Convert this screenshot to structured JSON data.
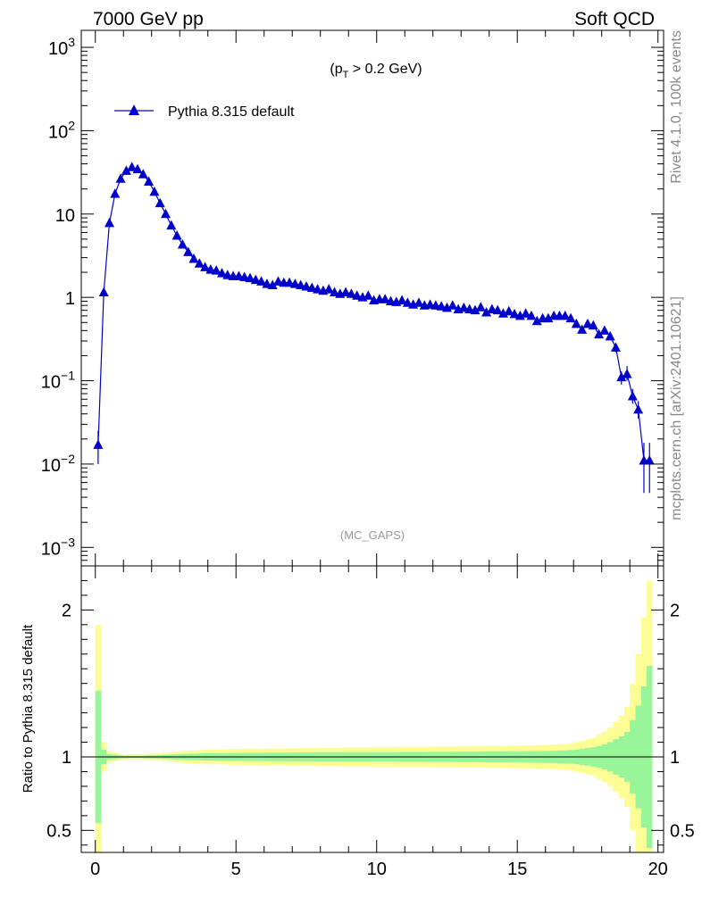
{
  "header": {
    "left": "7000 GeV pp",
    "right": "Soft QCD"
  },
  "side_labels": {
    "rivet": "Rivet 4.1.0,  100k events",
    "mcplots": "mcplots.cern.ch [arXiv:2401.10621]"
  },
  "colors": {
    "series": "#0000cc",
    "band_inner": "#99f599",
    "band_outer": "#fdfd96",
    "ref_line": "#000000",
    "watermark": "#999999"
  },
  "chart_data": [
    {
      "type": "line",
      "panel": "main",
      "title": "(p_T > 0.2 GeV)",
      "title_parts": {
        "prefix": "(p",
        "sub": "T",
        "suffix": " > 0.2 GeV)"
      },
      "watermark": "(MC_GAPS)",
      "xlabel": "",
      "ylabel": "",
      "xlim": [
        -0.5,
        20.2
      ],
      "ylim": [
        0.0006,
        1600
      ],
      "yscale": "log",
      "grid": false,
      "legend": {
        "position": "top-left",
        "entries": [
          "Pythia 8.315 default"
        ]
      },
      "x_ticks": [
        0,
        5,
        10,
        15,
        20
      ],
      "y_ticks": [
        {
          "base": "10",
          "exp": "3"
        },
        {
          "base": "10",
          "exp": "2"
        },
        {
          "base": "10",
          "exp": ""
        },
        {
          "base": "1",
          "exp": ""
        },
        {
          "base": "10",
          "exp": "−1"
        },
        {
          "base": "10",
          "exp": "−2"
        },
        {
          "base": "10",
          "exp": "−3"
        }
      ],
      "y_tick_values": [
        1000,
        100,
        10,
        1,
        0.1,
        0.01,
        0.001
      ],
      "series": [
        {
          "name": "Pythia 8.315 default",
          "marker": "triangle",
          "x": [
            0.1,
            0.3,
            0.5,
            0.7,
            0.9,
            1.1,
            1.3,
            1.5,
            1.7,
            1.9,
            2.1,
            2.3,
            2.5,
            2.7,
            2.9,
            3.1,
            3.3,
            3.5,
            3.7,
            3.9,
            4.1,
            4.3,
            4.5,
            4.7,
            4.9,
            5.1,
            5.3,
            5.5,
            5.7,
            5.9,
            6.1,
            6.3,
            6.5,
            6.7,
            6.9,
            7.1,
            7.3,
            7.5,
            7.7,
            7.9,
            8.1,
            8.3,
            8.5,
            8.7,
            8.9,
            9.1,
            9.3,
            9.5,
            9.7,
            9.9,
            10.1,
            10.3,
            10.5,
            10.7,
            10.9,
            11.1,
            11.3,
            11.5,
            11.7,
            11.9,
            12.1,
            12.3,
            12.5,
            12.7,
            12.9,
            13.1,
            13.3,
            13.5,
            13.7,
            13.9,
            14.1,
            14.3,
            14.5,
            14.7,
            14.9,
            15.1,
            15.3,
            15.5,
            15.7,
            15.9,
            16.1,
            16.3,
            16.5,
            16.7,
            16.9,
            17.1,
            17.3,
            17.5,
            17.7,
            17.9,
            18.1,
            18.3,
            18.5,
            18.7,
            18.9,
            19.1,
            19.3,
            19.5,
            19.7
          ],
          "y": [
            0.017,
            1.15,
            7.8,
            17.5,
            26.5,
            33.0,
            36.5,
            34.5,
            30.0,
            24.5,
            18.5,
            13.5,
            10.0,
            7.3,
            5.5,
            4.3,
            3.5,
            2.9,
            2.55,
            2.3,
            2.15,
            2.1,
            1.95,
            1.85,
            1.8,
            1.8,
            1.75,
            1.7,
            1.62,
            1.55,
            1.45,
            1.4,
            1.55,
            1.5,
            1.5,
            1.45,
            1.4,
            1.35,
            1.3,
            1.25,
            1.2,
            1.25,
            1.15,
            1.1,
            1.15,
            1.1,
            1.05,
            1.0,
            1.05,
            0.92,
            0.95,
            0.95,
            0.9,
            0.88,
            0.92,
            0.86,
            0.82,
            0.86,
            0.8,
            0.82,
            0.8,
            0.78,
            0.75,
            0.8,
            0.72,
            0.75,
            0.72,
            0.7,
            0.76,
            0.66,
            0.72,
            0.7,
            0.64,
            0.68,
            0.63,
            0.6,
            0.64,
            0.6,
            0.52,
            0.56,
            0.56,
            0.6,
            0.6,
            0.6,
            0.56,
            0.48,
            0.41,
            0.48,
            0.46,
            0.36,
            0.4,
            0.34,
            0.25,
            0.11,
            0.12,
            0.065,
            0.045,
            0.011,
            0.011
          ],
          "err_low": [
            0.007,
            0.08,
            0.2,
            0.3,
            0.4,
            0.4,
            0.4,
            0.4,
            0.35,
            0.3,
            0.25,
            0.2,
            0.15,
            0.1,
            0.08,
            0.06,
            0.05,
            0.05,
            0.04,
            0.04,
            0.04,
            0.04,
            0.03,
            0.03,
            0.03,
            0.03,
            0.03,
            0.03,
            0.03,
            0.03,
            0.03,
            0.03,
            0.03,
            0.03,
            0.03,
            0.03,
            0.03,
            0.03,
            0.03,
            0.03,
            0.03,
            0.03,
            0.03,
            0.03,
            0.03,
            0.03,
            0.03,
            0.03,
            0.03,
            0.03,
            0.03,
            0.03,
            0.03,
            0.03,
            0.03,
            0.03,
            0.03,
            0.03,
            0.03,
            0.03,
            0.03,
            0.03,
            0.03,
            0.03,
            0.03,
            0.03,
            0.03,
            0.03,
            0.03,
            0.03,
            0.03,
            0.03,
            0.03,
            0.03,
            0.03,
            0.03,
            0.03,
            0.03,
            0.03,
            0.03,
            0.03,
            0.03,
            0.03,
            0.03,
            0.03,
            0.03,
            0.03,
            0.03,
            0.03,
            0.03,
            0.03,
            0.03,
            0.03,
            0.02,
            0.02,
            0.012,
            0.01,
            0.0065,
            0.0065
          ],
          "err_high": [
            0.008,
            0.08,
            0.2,
            0.3,
            0.4,
            0.4,
            0.4,
            0.4,
            0.35,
            0.3,
            0.25,
            0.2,
            0.15,
            0.1,
            0.08,
            0.06,
            0.05,
            0.05,
            0.04,
            0.04,
            0.04,
            0.04,
            0.03,
            0.03,
            0.03,
            0.03,
            0.03,
            0.03,
            0.03,
            0.03,
            0.03,
            0.03,
            0.03,
            0.03,
            0.03,
            0.03,
            0.03,
            0.03,
            0.03,
            0.03,
            0.03,
            0.03,
            0.03,
            0.03,
            0.03,
            0.03,
            0.03,
            0.03,
            0.03,
            0.03,
            0.03,
            0.03,
            0.03,
            0.03,
            0.03,
            0.03,
            0.03,
            0.03,
            0.03,
            0.03,
            0.03,
            0.03,
            0.03,
            0.03,
            0.03,
            0.03,
            0.03,
            0.03,
            0.03,
            0.03,
            0.03,
            0.03,
            0.03,
            0.03,
            0.03,
            0.03,
            0.03,
            0.03,
            0.03,
            0.03,
            0.03,
            0.03,
            0.03,
            0.03,
            0.03,
            0.03,
            0.03,
            0.03,
            0.03,
            0.03,
            0.03,
            0.03,
            0.03,
            0.02,
            0.03,
            0.015,
            0.012,
            0.007,
            0.007
          ]
        }
      ]
    },
    {
      "type": "area",
      "panel": "ratio",
      "title": "",
      "xlabel": "",
      "ylabel": "Ratio to Pythia 8.315 default",
      "xlim": [
        -0.5,
        20.2
      ],
      "ylim": [
        0.35,
        2.3
      ],
      "grid": false,
      "x_ticks": [
        0,
        5,
        10,
        15,
        20
      ],
      "y_ticks": [
        0.5,
        1,
        2
      ],
      "reference": 1.0,
      "bin_edges": [
        0,
        0.2,
        0.4,
        0.6,
        0.8,
        1.0,
        1.2,
        1.4,
        1.6,
        1.8,
        2.0,
        2.2,
        2.4,
        2.6,
        2.8,
        3.0,
        3.2,
        3.4,
        3.6,
        3.8,
        4.0,
        4.2,
        4.4,
        4.6,
        4.8,
        5.0,
        5.2,
        5.4,
        5.6,
        5.8,
        6.0,
        6.2,
        6.4,
        6.6,
        6.8,
        7.0,
        7.2,
        7.4,
        7.6,
        7.8,
        8.0,
        8.2,
        8.4,
        8.6,
        8.8,
        9.0,
        9.2,
        9.4,
        9.6,
        9.8,
        10.0,
        10.2,
        10.4,
        10.6,
        10.8,
        11.0,
        11.2,
        11.4,
        11.6,
        11.8,
        12.0,
        12.2,
        12.4,
        12.6,
        12.8,
        13.0,
        13.2,
        13.4,
        13.6,
        13.8,
        14.0,
        14.2,
        14.4,
        14.6,
        14.8,
        15.0,
        15.2,
        15.4,
        15.6,
        15.8,
        16.0,
        16.2,
        16.4,
        16.6,
        16.8,
        17.0,
        17.2,
        17.4,
        17.6,
        17.8,
        18.0,
        18.2,
        18.4,
        18.6,
        18.8,
        19.0,
        19.2,
        19.4,
        19.6,
        19.8
      ],
      "inner_half_width": [
        0.45,
        0.05,
        0.02,
        0.015,
        0.01,
        0.008,
        0.008,
        0.008,
        0.008,
        0.01,
        0.01,
        0.012,
        0.014,
        0.016,
        0.018,
        0.02,
        0.021,
        0.022,
        0.023,
        0.024,
        0.025,
        0.025,
        0.026,
        0.026,
        0.027,
        0.027,
        0.028,
        0.028,
        0.028,
        0.028,
        0.029,
        0.029,
        0.029,
        0.029,
        0.03,
        0.03,
        0.03,
        0.03,
        0.03,
        0.031,
        0.031,
        0.031,
        0.031,
        0.031,
        0.032,
        0.032,
        0.032,
        0.032,
        0.032,
        0.033,
        0.033,
        0.033,
        0.033,
        0.033,
        0.034,
        0.034,
        0.034,
        0.034,
        0.034,
        0.035,
        0.035,
        0.035,
        0.035,
        0.035,
        0.036,
        0.036,
        0.036,
        0.036,
        0.036,
        0.037,
        0.037,
        0.037,
        0.037,
        0.038,
        0.038,
        0.038,
        0.039,
        0.039,
        0.04,
        0.04,
        0.041,
        0.042,
        0.043,
        0.044,
        0.046,
        0.05,
        0.055,
        0.06,
        0.065,
        0.075,
        0.085,
        0.1,
        0.12,
        0.14,
        0.17,
        0.25,
        0.35,
        0.48,
        0.62
      ],
      "outer_half_width": [
        0.9,
        0.1,
        0.04,
        0.03,
        0.02,
        0.016,
        0.016,
        0.016,
        0.018,
        0.02,
        0.022,
        0.025,
        0.028,
        0.032,
        0.036,
        0.04,
        0.042,
        0.044,
        0.046,
        0.048,
        0.05,
        0.05,
        0.052,
        0.052,
        0.054,
        0.054,
        0.056,
        0.056,
        0.056,
        0.056,
        0.058,
        0.058,
        0.058,
        0.058,
        0.06,
        0.06,
        0.06,
        0.06,
        0.06,
        0.062,
        0.062,
        0.062,
        0.062,
        0.062,
        0.064,
        0.064,
        0.064,
        0.064,
        0.064,
        0.066,
        0.066,
        0.066,
        0.066,
        0.066,
        0.068,
        0.068,
        0.068,
        0.068,
        0.068,
        0.07,
        0.07,
        0.07,
        0.07,
        0.07,
        0.072,
        0.072,
        0.072,
        0.072,
        0.072,
        0.074,
        0.074,
        0.074,
        0.074,
        0.076,
        0.076,
        0.076,
        0.078,
        0.078,
        0.08,
        0.08,
        0.082,
        0.084,
        0.086,
        0.088,
        0.092,
        0.1,
        0.11,
        0.12,
        0.13,
        0.15,
        0.17,
        0.2,
        0.24,
        0.28,
        0.34,
        0.5,
        0.7,
        0.95,
        1.2
      ]
    }
  ]
}
